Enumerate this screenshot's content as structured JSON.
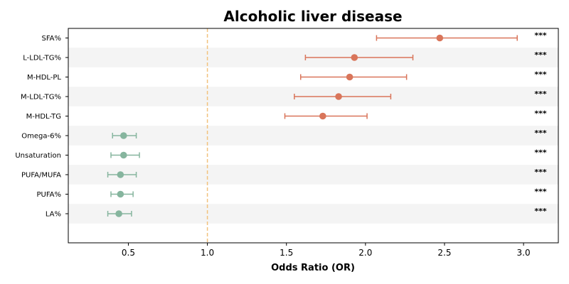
{
  "chart_data": {
    "type": "forest",
    "title": "Alcoholic liver disease",
    "xlabel": "Odds Ratio (OR)",
    "xlim": [
      0.12,
      3.22
    ],
    "xticks": [
      0.5,
      1.0,
      1.5,
      2.0,
      2.5,
      3.0
    ],
    "xtick_labels": [
      "0.5",
      "1.0",
      "1.5",
      "2.0",
      "2.5",
      "3.0"
    ],
    "reference_line": 1.0,
    "grid": false,
    "colors": {
      "risk": "#d9755a",
      "protective": "#86b59e",
      "reference": "#f2c27d",
      "band": "#f4f4f4"
    },
    "rows": [
      {
        "label": "SFA%",
        "or": 2.47,
        "lo": 2.07,
        "hi": 2.96,
        "sig": "***",
        "group": "risk"
      },
      {
        "label": "L-LDL-TG%",
        "or": 1.93,
        "lo": 1.62,
        "hi": 2.3,
        "sig": "***",
        "group": "risk"
      },
      {
        "label": "M-HDL-PL",
        "or": 1.9,
        "lo": 1.59,
        "hi": 2.26,
        "sig": "***",
        "group": "risk"
      },
      {
        "label": "M-LDL-TG%",
        "or": 1.83,
        "lo": 1.55,
        "hi": 2.16,
        "sig": "***",
        "group": "risk"
      },
      {
        "label": "M-HDL-TG",
        "or": 1.73,
        "lo": 1.49,
        "hi": 2.01,
        "sig": "***",
        "group": "risk"
      },
      {
        "label": "Omega-6%",
        "or": 0.47,
        "lo": 0.4,
        "hi": 0.55,
        "sig": "***",
        "group": "protective"
      },
      {
        "label": "Unsaturation",
        "or": 0.47,
        "lo": 0.39,
        "hi": 0.57,
        "sig": "***",
        "group": "protective"
      },
      {
        "label": "PUFA/MUFA",
        "or": 0.45,
        "lo": 0.37,
        "hi": 0.55,
        "sig": "***",
        "group": "protective"
      },
      {
        "label": "PUFA%",
        "or": 0.45,
        "lo": 0.39,
        "hi": 0.53,
        "sig": "***",
        "group": "protective"
      },
      {
        "label": "LA%",
        "or": 0.44,
        "lo": 0.37,
        "hi": 0.52,
        "sig": "***",
        "group": "protective"
      }
    ]
  }
}
